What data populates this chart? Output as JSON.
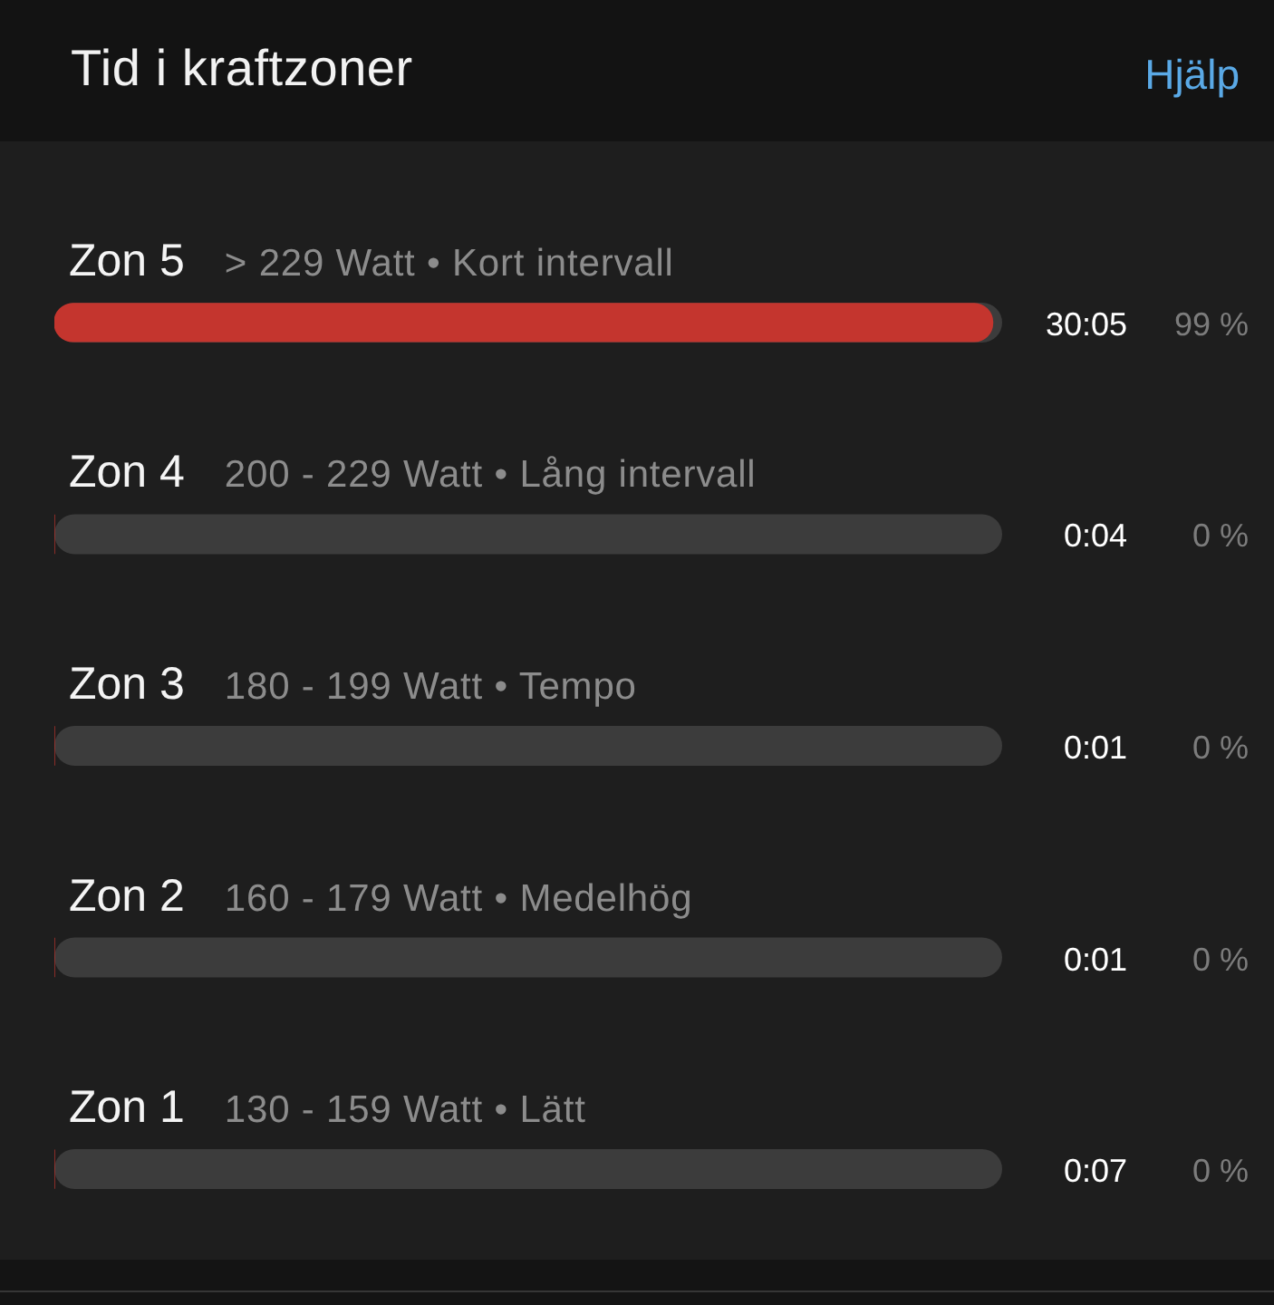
{
  "chart_data": {
    "type": "bar",
    "orientation": "horizontal",
    "title": "Tid i kraftzoner",
    "categories": [
      "Zon 5",
      "Zon 4",
      "Zon 3",
      "Zon 2",
      "Zon 1"
    ],
    "values": [
      99,
      0,
      0,
      0,
      0
    ],
    "color": "#c4352e",
    "xlim": [
      0,
      100
    ],
    "value_labels": [
      "99 %",
      "0 %",
      "0 %",
      "0 %",
      "0 %"
    ],
    "tick_labels": "y",
    "annotations": [
      "> 229 Watt • Kort intervall",
      "200 - 229 Watt • Lång intervall",
      "180 - 199 Watt • Tempo",
      "160 - 179 Watt • Medelhög",
      "130 - 159 Watt • Lätt",
      "30:05",
      "0:04",
      "0:01",
      "0:01",
      "0:07",
      "Hjälp"
    ]
  }
}
